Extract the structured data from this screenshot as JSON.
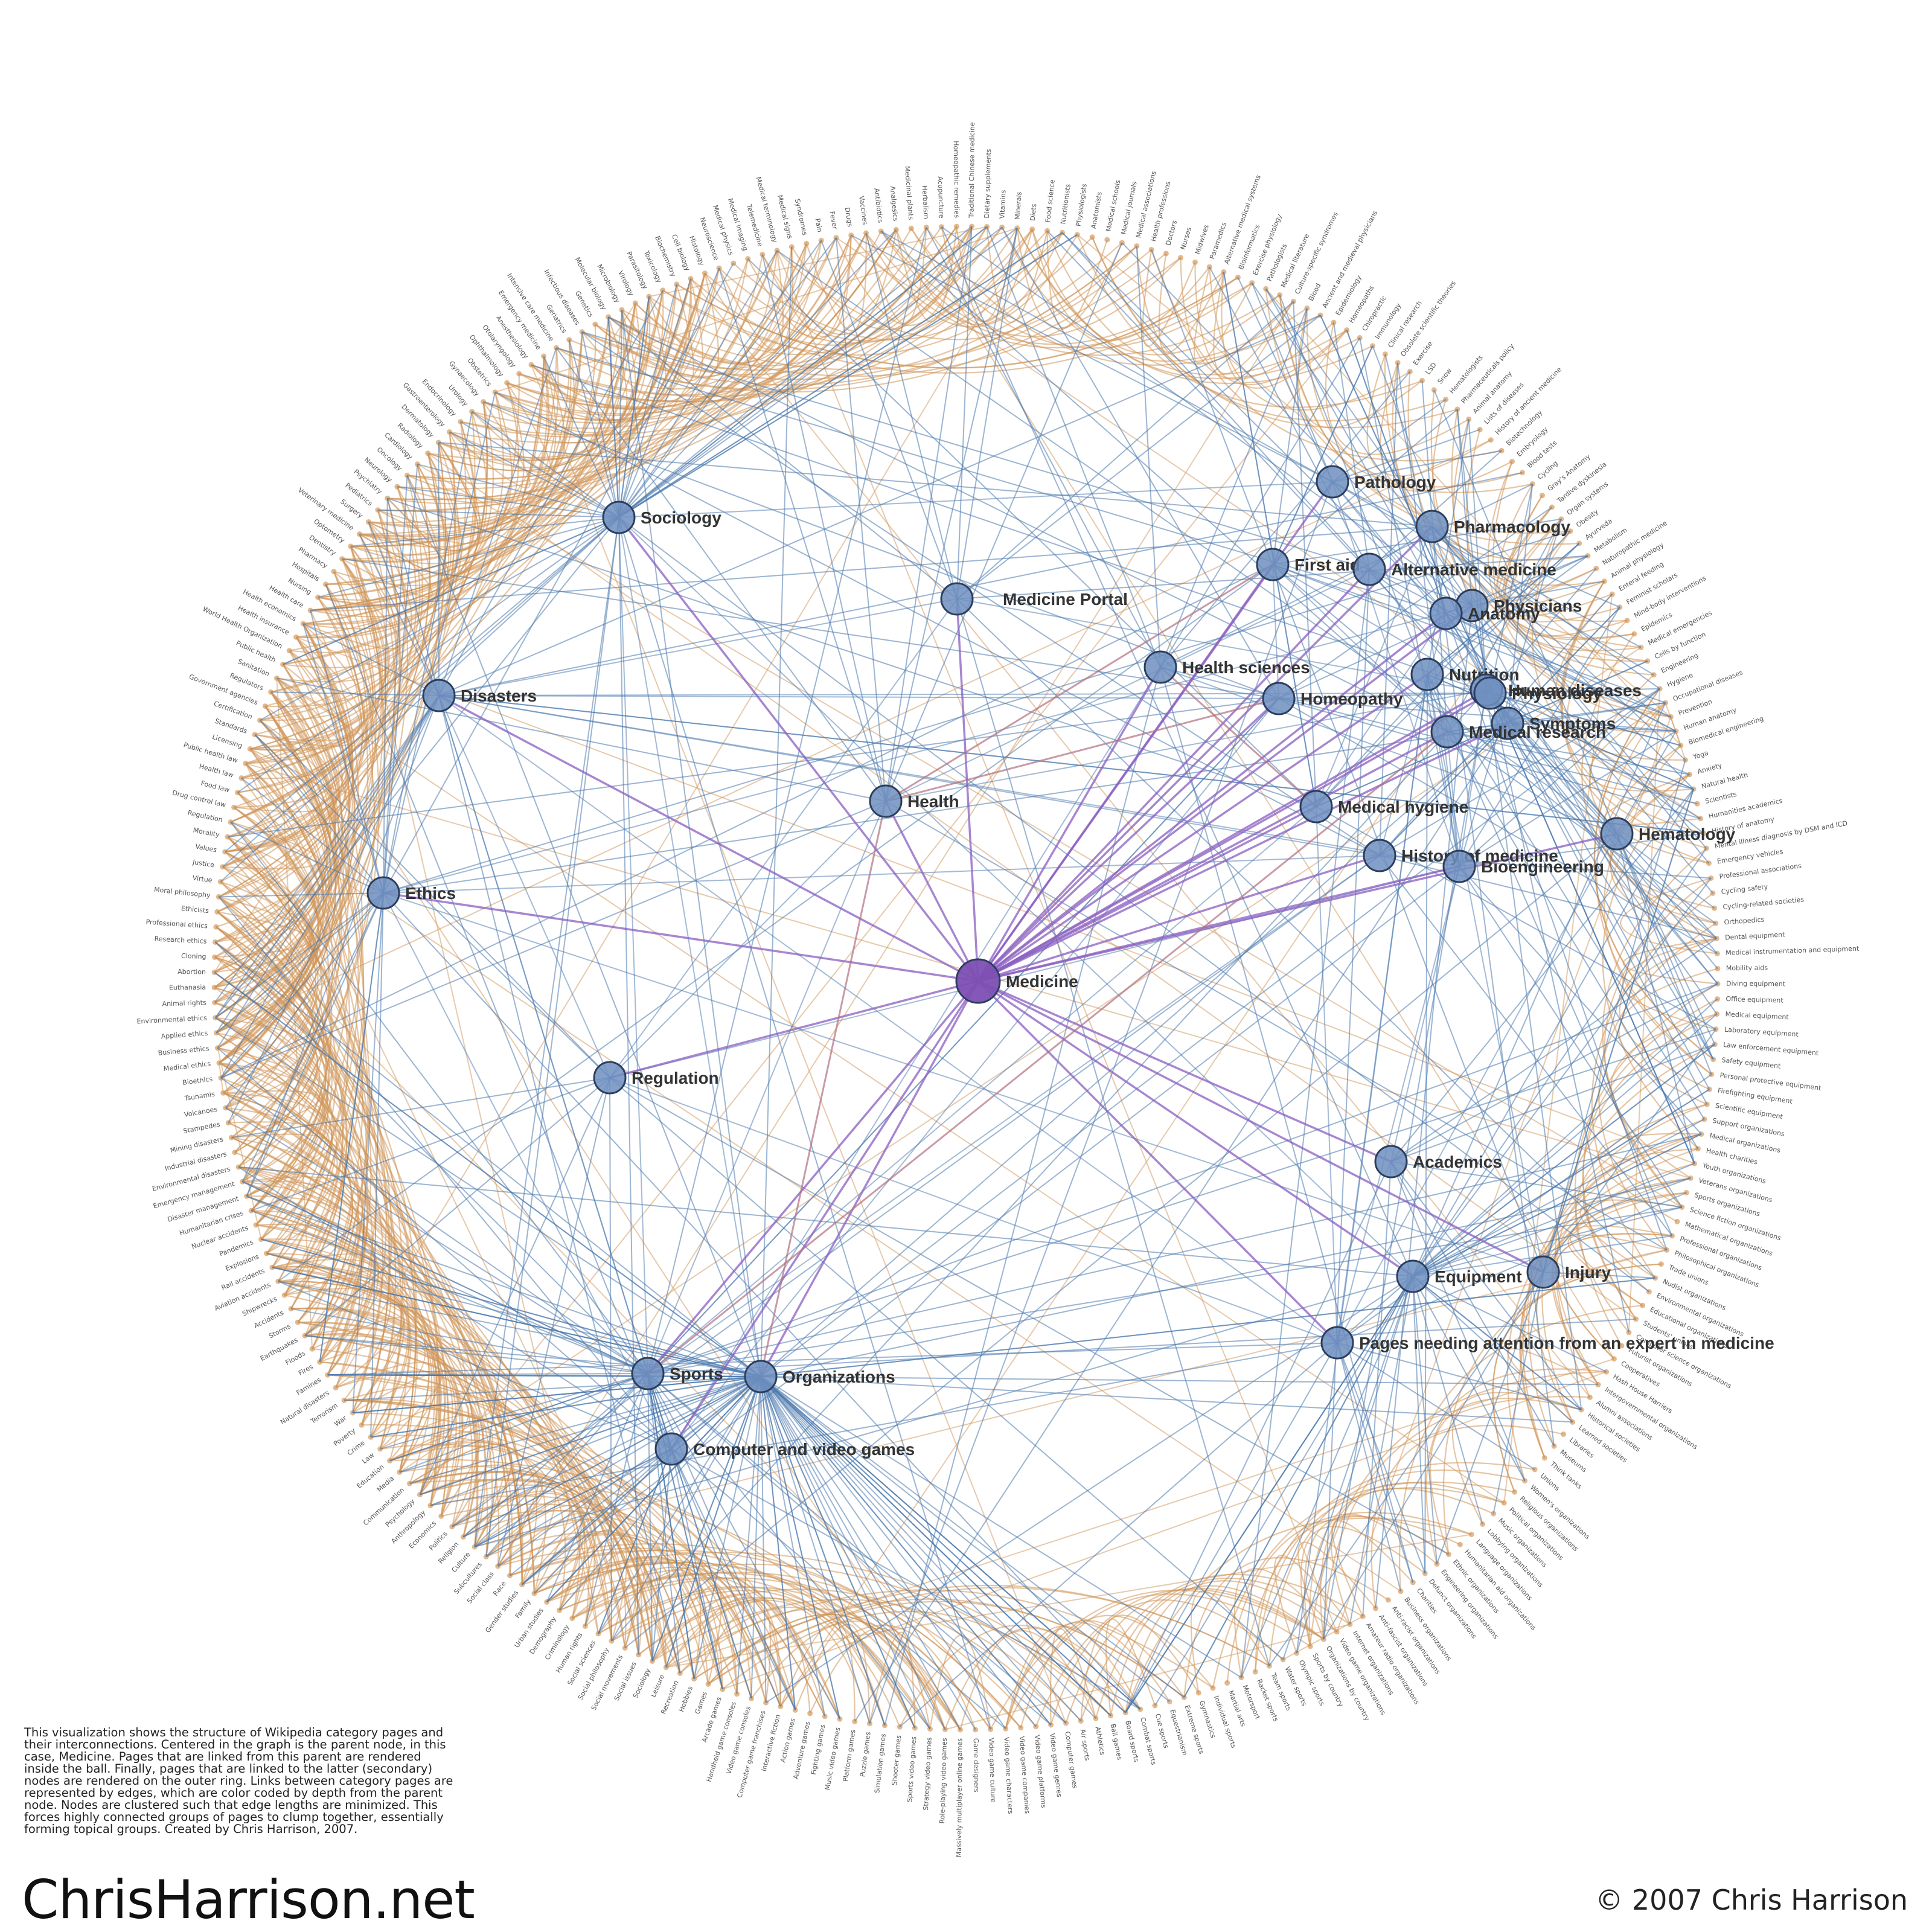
{
  "description": "This visualization shows the structure of Wikipedia category pages and their interconnections.  Centered in the graph is the parent node, in this case, Medicine.  Pages that are linked from this parent are rendered inside the ball.  Finally, pages that are linked to the latter (secondary) nodes are rendered on the outer ring. Links between category pages are represented by edges, which are color coded by depth from the parent node.  Nodes are clustered such that edge lengths are minimized.  This forces highly connected groups of pages to clump together, essentially forming topical groups.  Created by Chris Harrison, 2007.",
  "site": "ChrisHarrison.net",
  "copyright": "© 2007 Chris Harrison",
  "colors": {
    "root": "#7d4fb3",
    "root_edge": "#8a5ec0",
    "secondary_edge": "#4a78ad",
    "outer_edge": "#d0955a",
    "node_fill": "#6f8fc0",
    "ring_dot": "#e2b98e"
  },
  "root": {
    "id": "medicine",
    "label": "Medicine"
  },
  "nodes": [
    {
      "id": "sociology",
      "label": "Sociology"
    },
    {
      "id": "medicine-portal",
      "label": "Medicine Portal"
    },
    {
      "id": "disasters",
      "label": "Disasters"
    },
    {
      "id": "health",
      "label": "Health"
    },
    {
      "id": "ethics",
      "label": "Ethics"
    },
    {
      "id": "regulation",
      "label": "Regulation"
    },
    {
      "id": "sports",
      "label": "Sports"
    },
    {
      "id": "organizations",
      "label": "Organizations"
    },
    {
      "id": "computer-games",
      "label": "Computer and video games"
    },
    {
      "id": "pathology",
      "label": "Pathology"
    },
    {
      "id": "pharmacology",
      "label": "Pharmacology"
    },
    {
      "id": "first-aid",
      "label": "First aid"
    },
    {
      "id": "alternative-medicine",
      "label": "Alternative medicine"
    },
    {
      "id": "physicians",
      "label": "Physicians"
    },
    {
      "id": "anatomy",
      "label": "Anatomy"
    },
    {
      "id": "health-sciences",
      "label": "Health sciences"
    },
    {
      "id": "homeopathy",
      "label": "Homeopathy"
    },
    {
      "id": "nutrition",
      "label": "Nutrition"
    },
    {
      "id": "human-diseases",
      "label": "Human diseases"
    },
    {
      "id": "physiology",
      "label": "Physiology"
    },
    {
      "id": "symptoms",
      "label": "Symptoms"
    },
    {
      "id": "medical-research",
      "label": "Medical research"
    },
    {
      "id": "medical-hygiene",
      "label": "Medical hygiene"
    },
    {
      "id": "hematology",
      "label": "Hematology"
    },
    {
      "id": "history-of-medicine",
      "label": "History of medicine"
    },
    {
      "id": "bioengineering",
      "label": "Bioengineering"
    },
    {
      "id": "academics",
      "label": "Academics"
    },
    {
      "id": "equipment",
      "label": "Equipment"
    },
    {
      "id": "injury",
      "label": "Injury"
    },
    {
      "id": "pages-needing-attention",
      "label": "Pages needing attention from an expert in medicine"
    }
  ],
  "ring_labels": [
    "Alternative medical systems",
    "Bioinformatics",
    "Exercise physiology",
    "Pathologists",
    "Medical literature",
    "Culture-specific syndromes",
    "Blood",
    "Ancient and medieval physicians",
    "Epidemiology",
    "Homeopaths",
    "Chiropractic",
    "Immunology",
    "Clinical research",
    "Obsolete scientific theories",
    "Exercise",
    "LSD",
    "Snow",
    "Hematologists",
    "Pharmaceuticals policy",
    "Animal anatomy",
    "Lists of diseases",
    "History of ancient medicine",
    "Biotechnology",
    "Embryology",
    "Blood tests",
    "Cycling",
    "Gray's Anatomy",
    "Tardive dyskinesia",
    "Organ systems",
    "Obesity",
    "Ayurveda",
    "Metabolism",
    "Naturopathic medicine",
    "Animal physiology",
    "Enteral feeding",
    "Feminist scholars",
    "Mind-body interventions",
    "Epidemics",
    "Medical emergencies",
    "Cells by function",
    "Engineering",
    "Hygiene",
    "Occupational diseases",
    "Prevention",
    "Human anatomy",
    "Biomedical engineering",
    "Yoga",
    "Anxiety",
    "Natural health",
    "Scientists",
    "Humanities academics",
    "History of anatomy",
    "Mental illness diagnosis by DSM and ICD",
    "Emergency vehicles",
    "Professional associations",
    "Cycling safety",
    "Cycling-related societies",
    "Orthopedics",
    "Dental equipment",
    "Medical instrumentation and equipment",
    "Mobility aids",
    "Diving equipment",
    "Office equipment",
    "Medical equipment",
    "Laboratory equipment",
    "Law enforcement equipment",
    "Safety equipment",
    "Personal protective equipment",
    "Firefighting equipment",
    "Scientific equipment",
    "Support organizations",
    "Medical organizations",
    "Health charities",
    "Youth organizations",
    "Veterans organizations",
    "Sports organizations",
    "Science fiction organizations",
    "Mathematical organizations",
    "Professional organizations",
    "Philosophical organizations",
    "Trade unions",
    "Nudist organizations",
    "Environmental organizations",
    "Educational organizations",
    "Students' unions",
    "Computer science organizations",
    "Futurist organizations",
    "Cooperatives",
    "Hash House Harriers",
    "Intergovernmental organizations",
    "Alumni associations",
    "Historical societies",
    "Learned societies",
    "Libraries",
    "Museums",
    "Think tanks",
    "Unions",
    "Women's organizations",
    "Religious organizations",
    "Political organizations",
    "Music organizations",
    "Lobbying organizations",
    "Language organizations",
    "Humanitarian aid organizations",
    "Ethnic organizations",
    "Engineering organizations",
    "Defunct organizations",
    "Charities",
    "Business organizations",
    "Anti-racist organizations",
    "Anti-fascist organizations",
    "Amateur radio organizations",
    "Internet organizations",
    "Video game organizations",
    "Organizations by country",
    "Sports by country",
    "Olympic sports",
    "Water sports",
    "Team sports",
    "Racket sports",
    "Motorsport",
    "Martial arts",
    "Individual sports",
    "Gymnastics",
    "Extreme sports",
    "Equestrianism",
    "Cue sports",
    "Combat sports",
    "Board sports",
    "Ball games",
    "Athletics",
    "Air sports",
    "Computer games",
    "Video game genres",
    "Video game platforms",
    "Video game companies",
    "Video game characters",
    "Video game culture",
    "Game designers",
    "Massively multiplayer online games",
    "Role-playing video games",
    "Strategy video games",
    "Sports video games",
    "Shooter games",
    "Simulation games",
    "Puzzle games",
    "Platform games",
    "Music video games",
    "Fighting games",
    "Adventure games",
    "Action games",
    "Interactive fiction",
    "Computer game franchises",
    "Video game consoles",
    "Handheld game consoles",
    "Arcade games",
    "Games",
    "Hobbies",
    "Recreation",
    "Leisure",
    "Sociology",
    "Social issues",
    "Social movements",
    "Social philosophy",
    "Social sciences",
    "Human rights",
    "Criminology",
    "Demography",
    "Urban studies",
    "Family",
    "Gender studies",
    "Race",
    "Social class",
    "Subcultures",
    "Culture",
    "Religion",
    "Politics",
    "Economics",
    "Anthropology",
    "Psychology",
    "Communication",
    "Media",
    "Education",
    "Law",
    "Crime",
    "Poverty",
    "War",
    "Terrorism",
    "Natural disasters",
    "Famines",
    "Fires",
    "Floods",
    "Earthquakes",
    "Storms",
    "Accidents",
    "Shipwrecks",
    "Aviation accidents",
    "Rail accidents",
    "Explosions",
    "Pandemics",
    "Nuclear accidents",
    "Humanitarian crises",
    "Disaster management",
    "Emergency management",
    "Environmental disasters",
    "Industrial disasters",
    "Mining disasters",
    "Stampedes",
    "Volcanoes",
    "Tsunamis",
    "Bioethics",
    "Medical ethics",
    "Business ethics",
    "Applied ethics",
    "Environmental ethics",
    "Animal rights",
    "Euthanasia",
    "Abortion",
    "Cloning",
    "Research ethics",
    "Professional ethics",
    "Ethicists",
    "Moral philosophy",
    "Virtue",
    "Justice",
    "Values",
    "Morality",
    "Regulation",
    "Drug control law",
    "Food law",
    "Health law",
    "Public health law",
    "Licensing",
    "Standards",
    "Certification",
    "Government agencies",
    "Regulators",
    "Sanitation",
    "Public health",
    "World Health Organization",
    "Health insurance",
    "Health economics",
    "Health care",
    "Nursing",
    "Hospitals",
    "Pharmacy",
    "Dentistry",
    "Optometry",
    "Veterinary medicine",
    "Surgery",
    "Pediatrics",
    "Psychiatry",
    "Neurology",
    "Oncology",
    "Cardiology",
    "Radiology",
    "Dermatology",
    "Gastroenterology",
    "Endocrinology",
    "Urology",
    "Gynaecology",
    "Obstetrics",
    "Ophthalmology",
    "Otolaryngology",
    "Anesthesiology",
    "Emergency medicine",
    "Intensive care medicine",
    "Geriatrics",
    "Infectious diseases",
    "Genetics",
    "Molecular biology",
    "Microbiology",
    "Virology",
    "Parasitology",
    "Toxicology",
    "Biochemistry",
    "Cell biology",
    "Histology",
    "Neuroscience",
    "Medical physics",
    "Medical imaging",
    "Telemedicine",
    "Medical terminology",
    "Medical signs",
    "Syndromes",
    "Pain",
    "Fever",
    "Drugs",
    "Vaccines",
    "Antibiotics",
    "Analgesics",
    "Medicinal plants",
    "Herbalism",
    "Acupuncture",
    "Homeopathic remedies",
    "Traditional Chinese medicine",
    "Dietary supplements",
    "Vitamins",
    "Minerals",
    "Diets",
    "Food science",
    "Nutritionists",
    "Physiologists",
    "Anatomists",
    "Medical schools",
    "Medical journals",
    "Medical associations",
    "Health professions",
    "Doctors",
    "Nurses",
    "Midwives",
    "Paramedics"
  ]
}
